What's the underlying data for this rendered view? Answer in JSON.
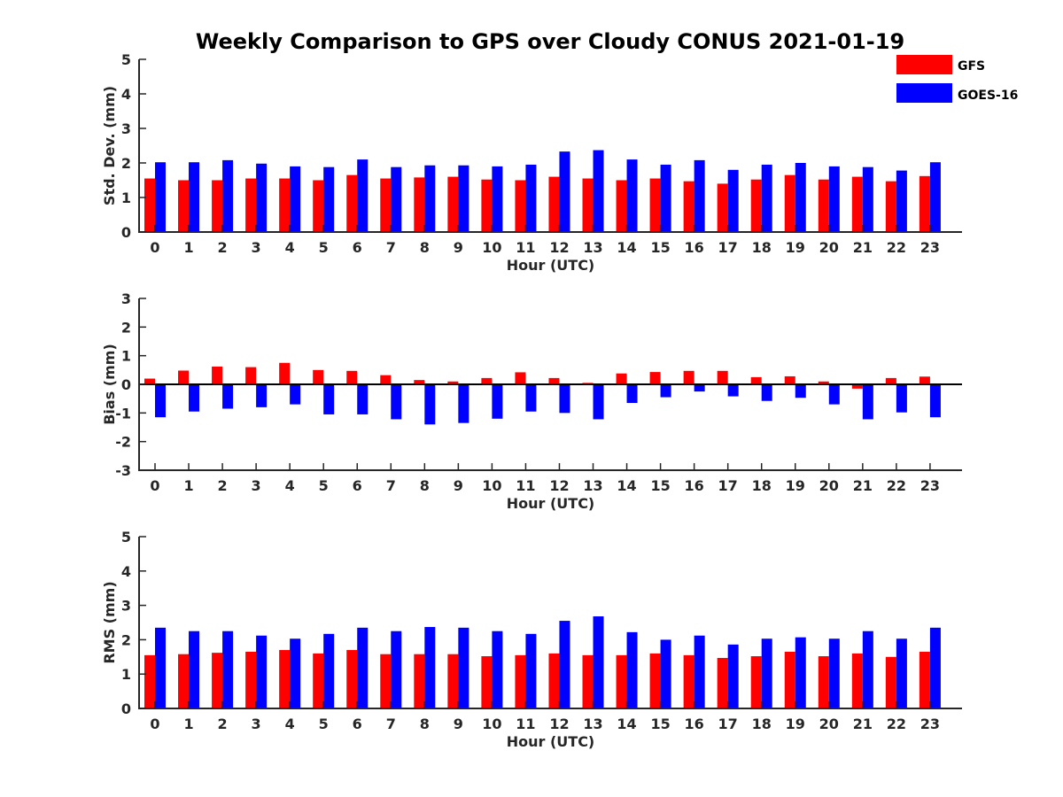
{
  "figure": {
    "title": "Weekly Comparison to GPS over Cloudy CONUS 2021-01-19",
    "legend": [
      {
        "label": "GFS",
        "color": "#ff0000"
      },
      {
        "label": "GOES-16",
        "color": "#0000ff"
      }
    ],
    "legend_placement": "top-right"
  },
  "chart_data": [
    {
      "type": "bar",
      "xlabel": "Hour (UTC)",
      "ylabel": "Std. Dev. (mm)",
      "ylim": [
        0,
        5
      ],
      "yticks": [
        0,
        1,
        2,
        3,
        4,
        5
      ],
      "categories": [
        "0",
        "1",
        "2",
        "3",
        "4",
        "5",
        "6",
        "7",
        "8",
        "9",
        "10",
        "11",
        "12",
        "13",
        "14",
        "15",
        "16",
        "17",
        "18",
        "19",
        "20",
        "21",
        "22",
        "23"
      ],
      "series": [
        {
          "name": "GFS",
          "color": "#ff0000",
          "values": [
            1.55,
            1.5,
            1.5,
            1.55,
            1.55,
            1.5,
            1.65,
            1.55,
            1.58,
            1.6,
            1.52,
            1.5,
            1.6,
            1.55,
            1.5,
            1.55,
            1.47,
            1.4,
            1.52,
            1.65,
            1.52,
            1.6,
            1.47,
            1.62
          ]
        },
        {
          "name": "GOES-16",
          "color": "#0000ff",
          "values": [
            2.02,
            2.02,
            2.08,
            1.98,
            1.9,
            1.88,
            2.1,
            1.88,
            1.93,
            1.93,
            1.9,
            1.95,
            2.33,
            2.37,
            2.1,
            1.95,
            2.08,
            1.8,
            1.95,
            2.0,
            1.9,
            1.88,
            1.78,
            2.02
          ]
        }
      ]
    },
    {
      "type": "bar",
      "xlabel": "Hour (UTC)",
      "ylabel": "Bias (mm)",
      "ylim": [
        -3,
        3
      ],
      "yticks": [
        -3,
        -2,
        -1,
        0,
        1,
        2,
        3
      ],
      "categories": [
        "0",
        "1",
        "2",
        "3",
        "4",
        "5",
        "6",
        "7",
        "8",
        "9",
        "10",
        "11",
        "12",
        "13",
        "14",
        "15",
        "16",
        "17",
        "18",
        "19",
        "20",
        "21",
        "22",
        "23"
      ],
      "series": [
        {
          "name": "GFS",
          "color": "#ff0000",
          "values": [
            0.2,
            0.48,
            0.62,
            0.6,
            0.75,
            0.5,
            0.47,
            0.32,
            0.15,
            0.1,
            0.22,
            0.42,
            0.22,
            0.05,
            0.38,
            0.43,
            0.47,
            0.47,
            0.25,
            0.28,
            0.1,
            -0.15,
            0.22,
            0.27
          ]
        },
        {
          "name": "GOES-16",
          "color": "#0000ff",
          "values": [
            -1.15,
            -0.95,
            -0.85,
            -0.8,
            -0.7,
            -1.05,
            -1.05,
            -1.22,
            -1.4,
            -1.35,
            -1.2,
            -0.95,
            -1.0,
            -1.22,
            -0.65,
            -0.45,
            -0.25,
            -0.42,
            -0.58,
            -0.47,
            -0.7,
            -1.22,
            -0.98,
            -1.15
          ]
        }
      ]
    },
    {
      "type": "bar",
      "xlabel": "Hour (UTC)",
      "ylabel": "RMS (mm)",
      "ylim": [
        0,
        5
      ],
      "yticks": [
        0,
        1,
        2,
        3,
        4,
        5
      ],
      "categories": [
        "0",
        "1",
        "2",
        "3",
        "4",
        "5",
        "6",
        "7",
        "8",
        "9",
        "10",
        "11",
        "12",
        "13",
        "14",
        "15",
        "16",
        "17",
        "18",
        "19",
        "20",
        "21",
        "22",
        "23"
      ],
      "series": [
        {
          "name": "GFS",
          "color": "#ff0000",
          "values": [
            1.55,
            1.58,
            1.62,
            1.65,
            1.7,
            1.6,
            1.7,
            1.58,
            1.58,
            1.58,
            1.52,
            1.55,
            1.6,
            1.55,
            1.55,
            1.6,
            1.55,
            1.47,
            1.52,
            1.65,
            1.52,
            1.6,
            1.5,
            1.65
          ]
        },
        {
          "name": "GOES-16",
          "color": "#0000ff",
          "values": [
            2.35,
            2.25,
            2.25,
            2.12,
            2.03,
            2.17,
            2.35,
            2.25,
            2.37,
            2.35,
            2.25,
            2.17,
            2.55,
            2.68,
            2.22,
            2.0,
            2.12,
            1.86,
            2.03,
            2.07,
            2.03,
            2.25,
            2.03,
            2.35
          ]
        }
      ]
    }
  ]
}
